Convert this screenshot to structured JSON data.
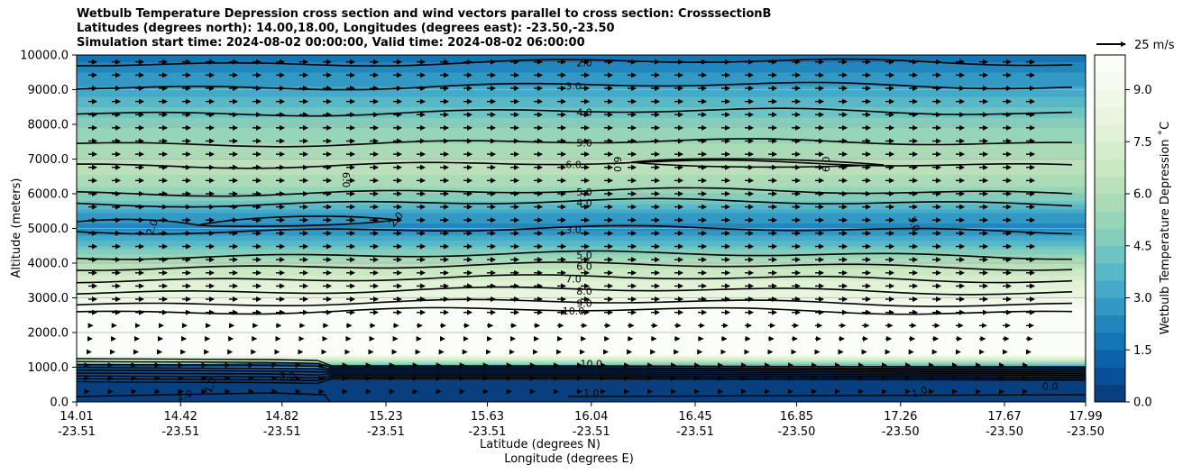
{
  "chart_data": {
    "type": "contour-cross-section",
    "title_lines": [
      "Wetbulb Temperature Depression cross section and wind vectors parallel to cross section: CrosssectionB",
      "Latitudes (degrees north): 14.00,18.00, Longitudes (degrees east): -23.50,-23.50",
      "Simulation start time: 2024-08-02 00:00:00, Valid time: 2024-08-02 06:00:00"
    ],
    "ylabel": "Altitude (meters)",
    "xlabel_lat": "Latitude (degrees N)",
    "xlabel_lon": "Longitude (degrees E)",
    "ylim": [
      0,
      10000
    ],
    "y_ticks": [
      "0.0",
      "1000.0",
      "2000.0",
      "3000.0",
      "4000.0",
      "5000.0",
      "6000.0",
      "7000.0",
      "8000.0",
      "9000.0",
      "10000.0"
    ],
    "x_ticks_lat": [
      "14.01",
      "14.42",
      "14.82",
      "15.23",
      "15.63",
      "16.04",
      "16.45",
      "16.85",
      "17.26",
      "17.67",
      "17.99"
    ],
    "x_ticks_lon": [
      "-23.51",
      "-23.51",
      "-23.51",
      "-23.51",
      "-23.51",
      "-23.51",
      "-23.51",
      "-23.50",
      "-23.50",
      "-23.50",
      "-23.50"
    ],
    "colorbar": {
      "label": "Wetbulb Temperature Depression ˚C",
      "min": 0,
      "max": 10,
      "ticks": [
        "0.0",
        "1.5",
        "3.0",
        "4.5",
        "6.0",
        "7.5",
        "9.0"
      ],
      "levels": 20,
      "colors": [
        "#08407f",
        "#08509a",
        "#0b62ab",
        "#1475b5",
        "#2286bd",
        "#3298c4",
        "#45a9c9",
        "#58b8c8",
        "#6ec4c2",
        "#84cdbb",
        "#97d5b8",
        "#aadbb6",
        "#bbe1ba",
        "#cae8c2",
        "#d6edcb",
        "#e1f2d6",
        "#e9f5df",
        "#f0f9e8",
        "#f5fbf0",
        "#fbfdf8"
      ]
    },
    "quiver_key": {
      "label": "25 m/s",
      "speed": 25
    },
    "profile": [
      {
        "alt": 0,
        "value": 0.5
      },
      {
        "alt": 500,
        "value": 0.8
      },
      {
        "alt": 900,
        "value": 1.5
      },
      {
        "alt": 1400,
        "value": 10
      },
      {
        "alt": 2500,
        "value": 10
      },
      {
        "alt": 2700,
        "value": 9.5
      },
      {
        "alt": 3000,
        "value": 8.5
      },
      {
        "alt": 3500,
        "value": 7.5
      },
      {
        "alt": 4000,
        "value": 6.0
      },
      {
        "alt": 4500,
        "value": 4.0
      },
      {
        "alt": 5000,
        "value": 2.3
      },
      {
        "alt": 5400,
        "value": 2.8
      },
      {
        "alt": 5800,
        "value": 4.5
      },
      {
        "alt": 6300,
        "value": 5.8
      },
      {
        "alt": 6800,
        "value": 6.2
      },
      {
        "alt": 7300,
        "value": 5.7
      },
      {
        "alt": 7900,
        "value": 5.0
      },
      {
        "alt": 8500,
        "value": 4.0
      },
      {
        "alt": 9100,
        "value": 3.0
      },
      {
        "alt": 9700,
        "value": 2.2
      },
      {
        "alt": 10000,
        "value": 1.5
      }
    ],
    "contours": [
      {
        "level": "2.0",
        "alt": 9780,
        "label": "2.0"
      },
      {
        "level": "3.0",
        "alt": 9100,
        "label": "3.0"
      },
      {
        "level": "4.0",
        "alt": 8350,
        "label": "4.0"
      },
      {
        "level": "5.0",
        "alt": 7470,
        "label": "5.0"
      },
      {
        "level": "6.0",
        "alt": 6850,
        "label": "6.0"
      },
      {
        "level": "5.0",
        "alt": 6050,
        "label": "5.0"
      },
      {
        "level": "4.0",
        "alt": 5740,
        "label": "4.0"
      },
      {
        "level": "3.0",
        "alt": 4960,
        "label": "3.0"
      },
      {
        "level": "5.0",
        "alt": 4230,
        "label": "5.0"
      },
      {
        "level": "6.0",
        "alt": 3910,
        "label": "6.0"
      },
      {
        "level": "7.0",
        "alt": 3550,
        "label": "7.0"
      },
      {
        "level": "8.0",
        "alt": 3200,
        "label": "8.0"
      },
      {
        "level": "9.0",
        "alt": 2850,
        "label": "9.0"
      },
      {
        "level": "10.0",
        "alt": 2620,
        "label": "10.0"
      }
    ],
    "extra_labels": [
      {
        "text": "2.0",
        "lat": 14.32,
        "alt": 5000,
        "rot": -70
      },
      {
        "text": "2.0",
        "lat": 15.28,
        "alt": 5200,
        "rot": -50
      },
      {
        "text": "6.0",
        "lat": 15.06,
        "alt": 6400,
        "rot": 90
      },
      {
        "text": "6.0",
        "lat": 16.13,
        "alt": 6850,
        "rot": 90
      },
      {
        "text": "6.0",
        "lat": 16.98,
        "alt": 6850,
        "rot": -90
      },
      {
        "text": "3.0",
        "lat": 17.3,
        "alt": 5100,
        "rot": 70
      },
      {
        "text": "1.0",
        "lat": 16.04,
        "alt": 150,
        "rot": 0
      },
      {
        "text": "0.0",
        "lat": 17.85,
        "alt": 350,
        "rot": 0
      },
      {
        "text": "1.0",
        "lat": 17.34,
        "alt": 200,
        "rot": -20
      },
      {
        "text": "1.0",
        "lat": 14.55,
        "alt": 450,
        "rot": -70
      },
      {
        "text": "2.0",
        "lat": 14.44,
        "alt": 100,
        "rot": -20
      },
      {
        "text": "3.0",
        "lat": 14.84,
        "alt": 650,
        "rot": 0
      },
      {
        "text": "10.0",
        "lat": 16.04,
        "alt": 1000,
        "rot": 0
      }
    ]
  }
}
